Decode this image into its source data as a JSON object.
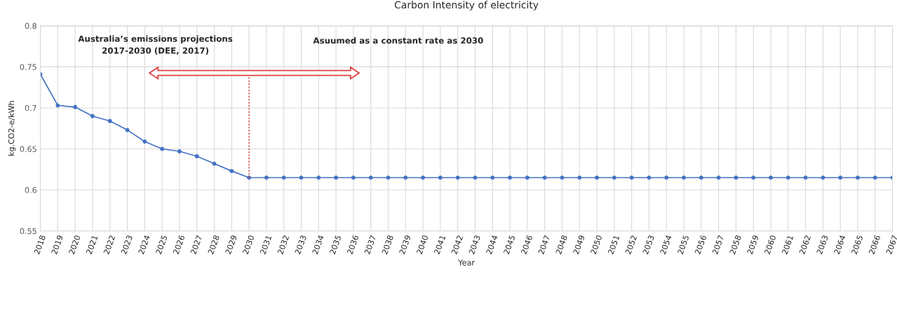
{
  "chart_data": {
    "type": "line",
    "title": "Carbon Intensity of electricity",
    "xlabel": "Year",
    "ylabel": "kg.CO2-e/kWh",
    "categories": [
      "2018",
      "2019",
      "2020",
      "2021",
      "2022",
      "2023",
      "2024",
      "2025",
      "2026",
      "2027",
      "2028",
      "2029",
      "2030",
      "2031",
      "2032",
      "2033",
      "2034",
      "2035",
      "2036",
      "2037",
      "2038",
      "2039",
      "2040",
      "2041",
      "2042",
      "2043",
      "2044",
      "2045",
      "2046",
      "2047",
      "2048",
      "2049",
      "2050",
      "2051",
      "2052",
      "2053",
      "2054",
      "2055",
      "2056",
      "2057",
      "2058",
      "2059",
      "2060",
      "2061",
      "2062",
      "2063",
      "2064",
      "2065",
      "2066",
      "2067"
    ],
    "series": [
      {
        "color": "#4472c4",
        "values": [
          0.741,
          0.703,
          0.701,
          0.69,
          0.684,
          0.673,
          0.659,
          0.65,
          0.647,
          0.641,
          0.632,
          0.623,
          0.615,
          0.615,
          0.615,
          0.615,
          0.615,
          0.615,
          0.615,
          0.615,
          0.615,
          0.615,
          0.615,
          0.615,
          0.615,
          0.615,
          0.615,
          0.615,
          0.615,
          0.615,
          0.615,
          0.615,
          0.615,
          0.615,
          0.615,
          0.615,
          0.615,
          0.615,
          0.615,
          0.615,
          0.615,
          0.615,
          0.615,
          0.615,
          0.615,
          0.615,
          0.615,
          0.615,
          0.615,
          0.615
        ]
      }
    ],
    "annotations": [
      "Australia’s emissions projections\n2017-2030 (DEE, 2017)",
      "Asuumed as a constant rate as 2030"
    ],
    "ylim": [
      0.55,
      0.8
    ],
    "yticks": [
      {
        "value": 0.55,
        "label": "0.55"
      },
      {
        "value": 0.6,
        "label": "0.6"
      },
      {
        "value": 0.65,
        "label": "0.65"
      },
      {
        "value": 0.7,
        "label": "0.7"
      },
      {
        "value": 0.75,
        "label": "0.75"
      },
      {
        "value": 0.8,
        "label": "0.8"
      }
    ],
    "grid": true,
    "marker": "circle",
    "line_style": "solid"
  }
}
